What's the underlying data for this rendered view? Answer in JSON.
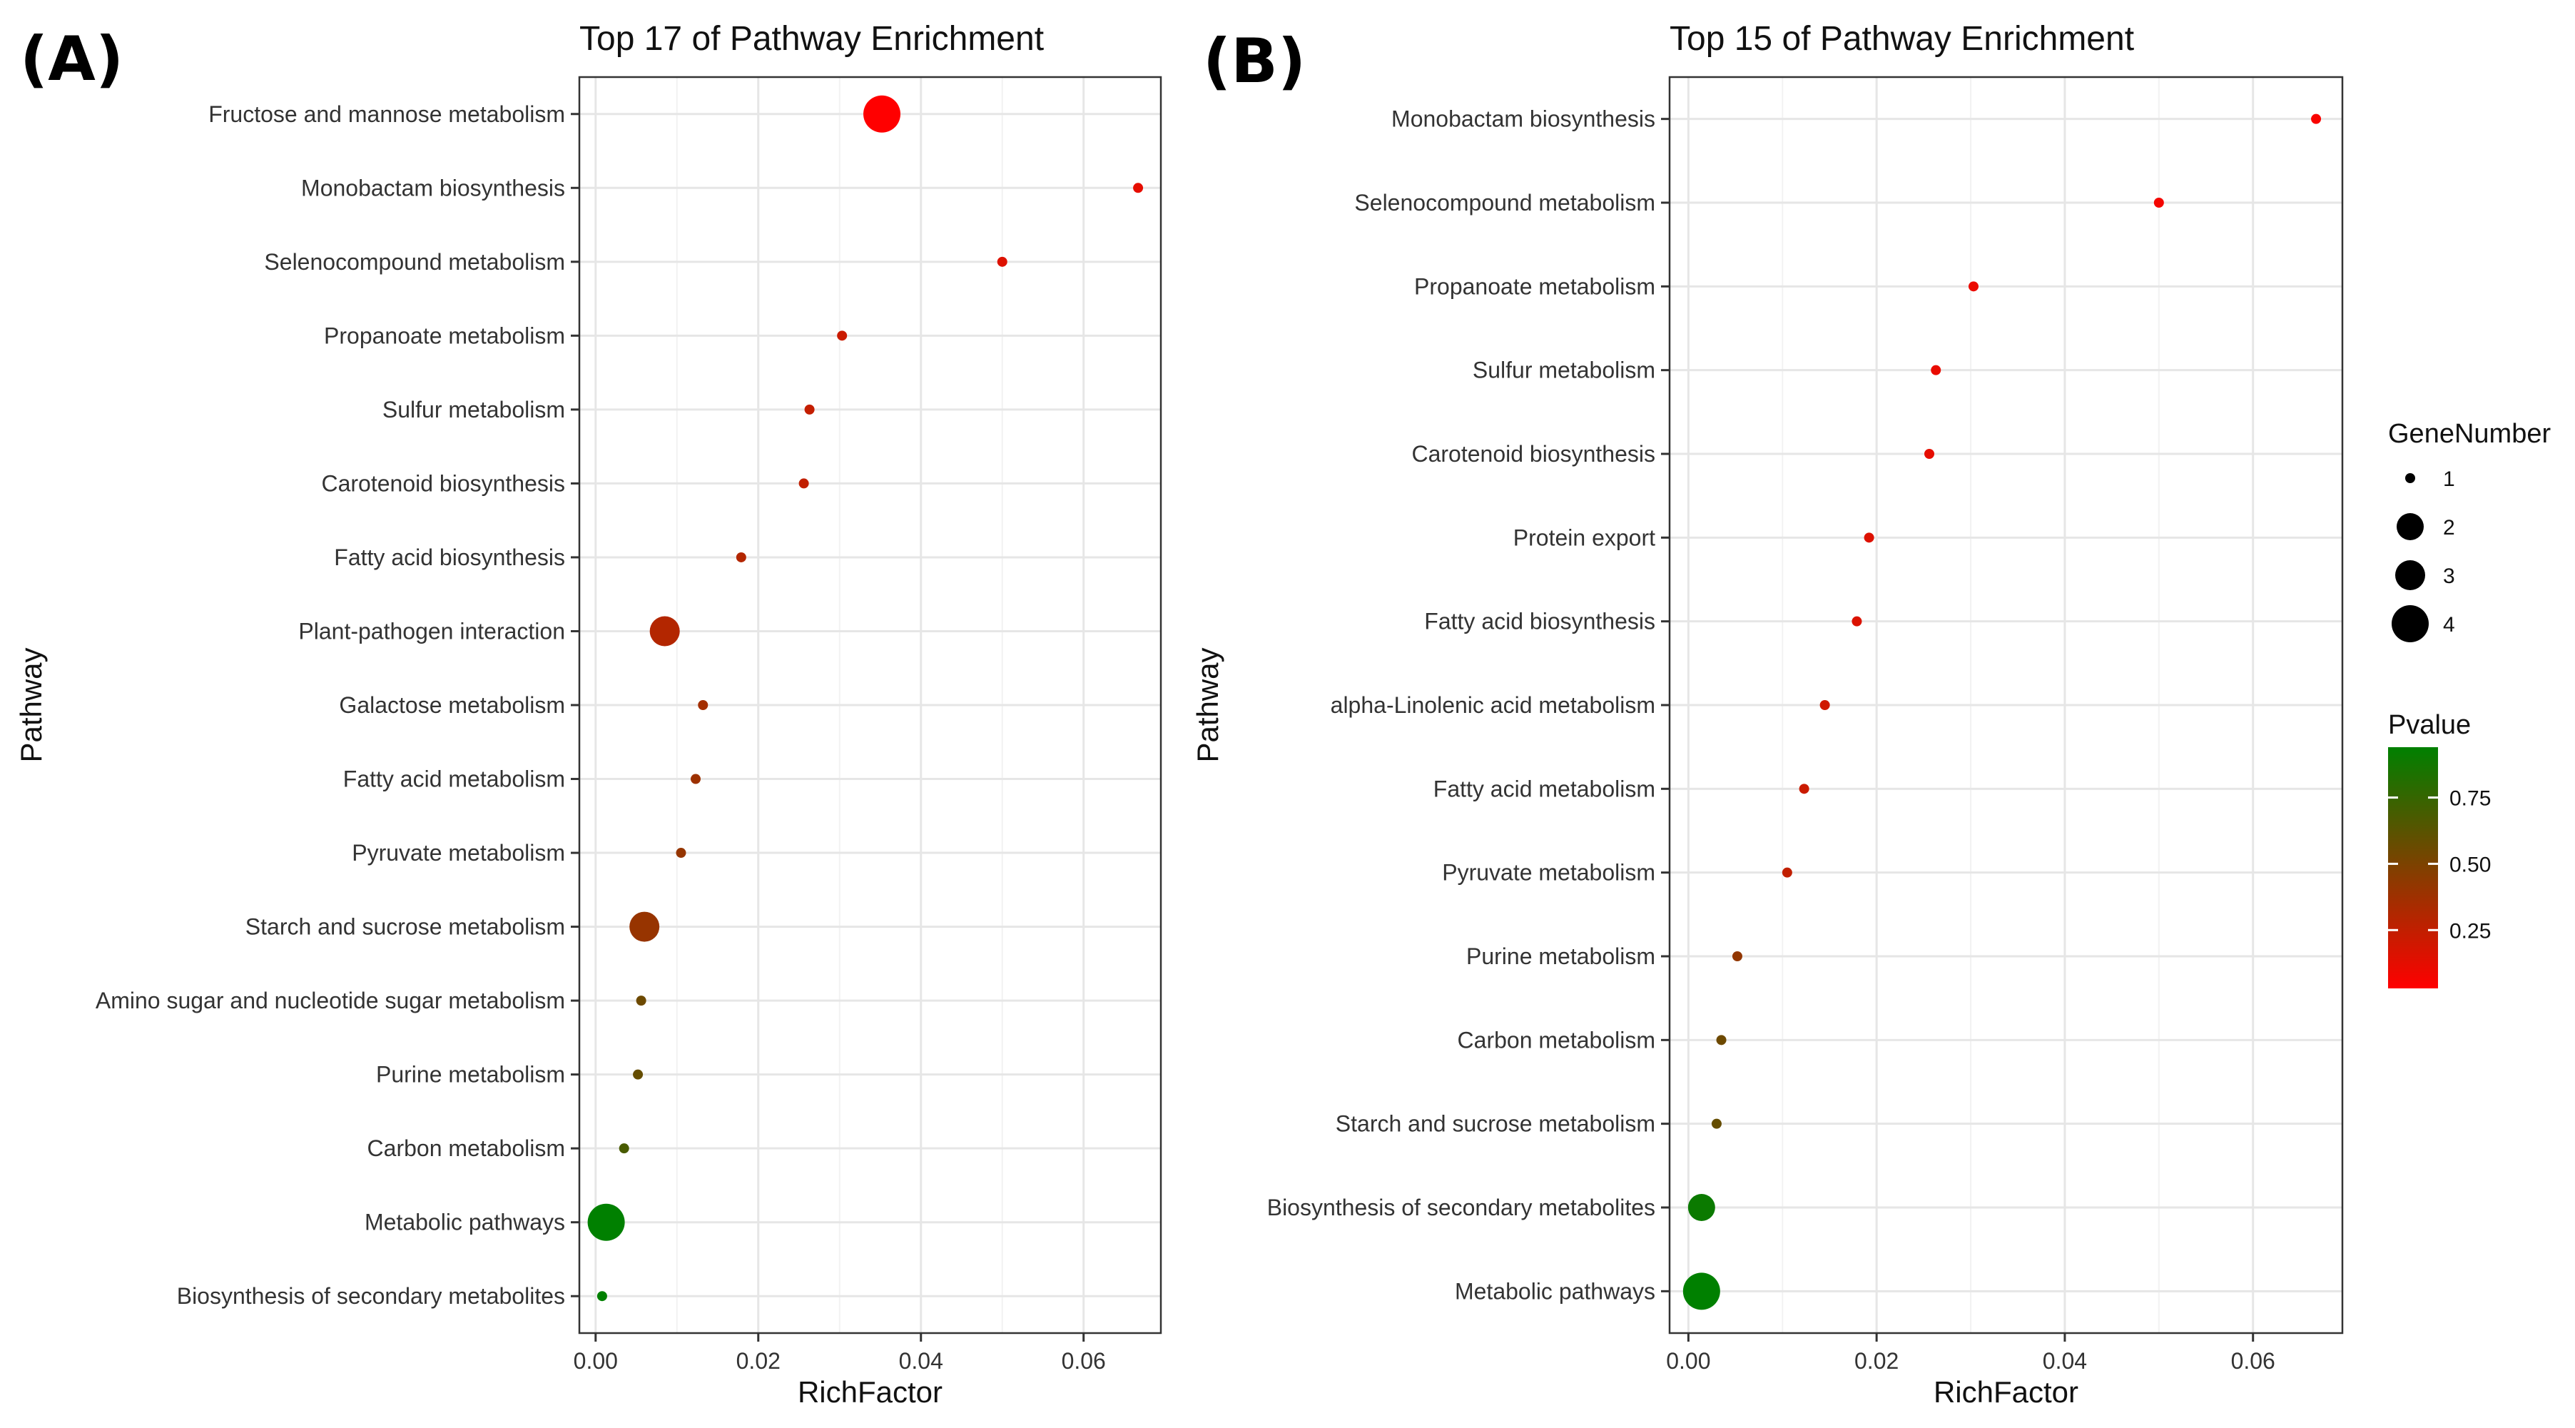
{
  "chart_data": [
    {
      "panel_label": "(A)",
      "type": "scatter",
      "title": "Top 17 of Pathway Enrichment",
      "xlabel": "RichFactor",
      "ylabel": "Pathway",
      "xlim": [
        -0.002,
        0.0695
      ],
      "xticks": [
        "0.00",
        "0.02",
        "0.04",
        "0.06"
      ],
      "grid": true,
      "points": [
        {
          "pathway": "Fructose and mannose metabolism",
          "rich_factor": 0.0352,
          "gene_number": 4,
          "pvalue": 0.01
        },
        {
          "pathway": "Monobactam biosynthesis",
          "rich_factor": 0.0667,
          "gene_number": 1,
          "pvalue": 0.12
        },
        {
          "pathway": "Selenocompound metabolism",
          "rich_factor": 0.05,
          "gene_number": 1,
          "pvalue": 0.15
        },
        {
          "pathway": "Propanoate metabolism",
          "rich_factor": 0.0303,
          "gene_number": 1,
          "pvalue": 0.22
        },
        {
          "pathway": "Sulfur metabolism",
          "rich_factor": 0.0263,
          "gene_number": 1,
          "pvalue": 0.24
        },
        {
          "pathway": "Carotenoid biosynthesis",
          "rich_factor": 0.0256,
          "gene_number": 1,
          "pvalue": 0.25
        },
        {
          "pathway": "Fatty acid biosynthesis",
          "rich_factor": 0.0179,
          "gene_number": 1,
          "pvalue": 0.3
        },
        {
          "pathway": "Plant-pathogen interaction",
          "rich_factor": 0.0085,
          "gene_number": 3,
          "pvalue": 0.3
        },
        {
          "pathway": "Galactose metabolism",
          "rich_factor": 0.0132,
          "gene_number": 1,
          "pvalue": 0.36
        },
        {
          "pathway": "Fatty acid metabolism",
          "rich_factor": 0.0123,
          "gene_number": 1,
          "pvalue": 0.38
        },
        {
          "pathway": "Pyruvate metabolism",
          "rich_factor": 0.0105,
          "gene_number": 1,
          "pvalue": 0.41
        },
        {
          "pathway": "Starch and sucrose metabolism",
          "rich_factor": 0.006,
          "gene_number": 3,
          "pvalue": 0.4
        },
        {
          "pathway": "Amino sugar and nucleotide sugar metabolism",
          "rich_factor": 0.0056,
          "gene_number": 1,
          "pvalue": 0.55
        },
        {
          "pathway": "Purine metabolism",
          "rich_factor": 0.0052,
          "gene_number": 1,
          "pvalue": 0.58
        },
        {
          "pathway": "Carbon metabolism",
          "rich_factor": 0.0035,
          "gene_number": 1,
          "pvalue": 0.68
        },
        {
          "pathway": "Metabolic pathways",
          "rich_factor": 0.0013,
          "gene_number": 4,
          "pvalue": 0.97
        },
        {
          "pathway": "Biosynthesis of secondary metabolites",
          "rich_factor": 0.0008,
          "gene_number": 1,
          "pvalue": 0.95
        }
      ]
    },
    {
      "panel_label": "(B)",
      "type": "scatter",
      "title": "Top 15 of Pathway Enrichment",
      "xlabel": "RichFactor",
      "ylabel": "Pathway",
      "xlim": [
        -0.002,
        0.0695
      ],
      "xticks": [
        "0.00",
        "0.02",
        "0.04",
        "0.06"
      ],
      "grid": true,
      "points": [
        {
          "pathway": "Monobactam biosynthesis",
          "rich_factor": 0.0667,
          "gene_number": 1,
          "pvalue": 0.05
        },
        {
          "pathway": "Selenocompound metabolism",
          "rich_factor": 0.05,
          "gene_number": 1,
          "pvalue": 0.07
        },
        {
          "pathway": "Propanoate metabolism",
          "rich_factor": 0.0303,
          "gene_number": 1,
          "pvalue": 0.1
        },
        {
          "pathway": "Sulfur metabolism",
          "rich_factor": 0.0263,
          "gene_number": 1,
          "pvalue": 0.11
        },
        {
          "pathway": "Carotenoid biosynthesis",
          "rich_factor": 0.0256,
          "gene_number": 1,
          "pvalue": 0.12
        },
        {
          "pathway": "Protein export",
          "rich_factor": 0.0192,
          "gene_number": 1,
          "pvalue": 0.15
        },
        {
          "pathway": "Fatty acid biosynthesis",
          "rich_factor": 0.0179,
          "gene_number": 1,
          "pvalue": 0.16
        },
        {
          "pathway": "alpha-Linolenic acid metabolism",
          "rich_factor": 0.0145,
          "gene_number": 1,
          "pvalue": 0.2
        },
        {
          "pathway": "Fatty acid metabolism",
          "rich_factor": 0.0123,
          "gene_number": 1,
          "pvalue": 0.22
        },
        {
          "pathway": "Pyruvate metabolism",
          "rich_factor": 0.0105,
          "gene_number": 1,
          "pvalue": 0.25
        },
        {
          "pathway": "Purine metabolism",
          "rich_factor": 0.0052,
          "gene_number": 1,
          "pvalue": 0.42
        },
        {
          "pathway": "Carbon metabolism",
          "rich_factor": 0.0035,
          "gene_number": 1,
          "pvalue": 0.55
        },
        {
          "pathway": "Starch and sucrose metabolism",
          "rich_factor": 0.003,
          "gene_number": 1,
          "pvalue": 0.58
        },
        {
          "pathway": "Biosynthesis of secondary metabolites",
          "rich_factor": 0.0014,
          "gene_number": 2,
          "pvalue": 0.9
        },
        {
          "pathway": "Metabolic pathways",
          "rich_factor": 0.0014,
          "gene_number": 4,
          "pvalue": 0.95
        }
      ]
    }
  ],
  "legend": {
    "size_title": "GeneNumber",
    "size_levels": [
      {
        "label": "1",
        "value": 1
      },
      {
        "label": "2",
        "value": 2
      },
      {
        "label": "3",
        "value": 3
      },
      {
        "label": "4",
        "value": 4
      }
    ],
    "color_title": "Pvalue",
    "color_range": [
      0.03,
      0.94
    ],
    "color_ticks": [
      {
        "label": "0.75",
        "value": 0.75
      },
      {
        "label": "0.50",
        "value": 0.5
      },
      {
        "label": "0.25",
        "value": 0.25
      }
    ],
    "color_low": "#ff0000",
    "color_high": "#008000"
  }
}
